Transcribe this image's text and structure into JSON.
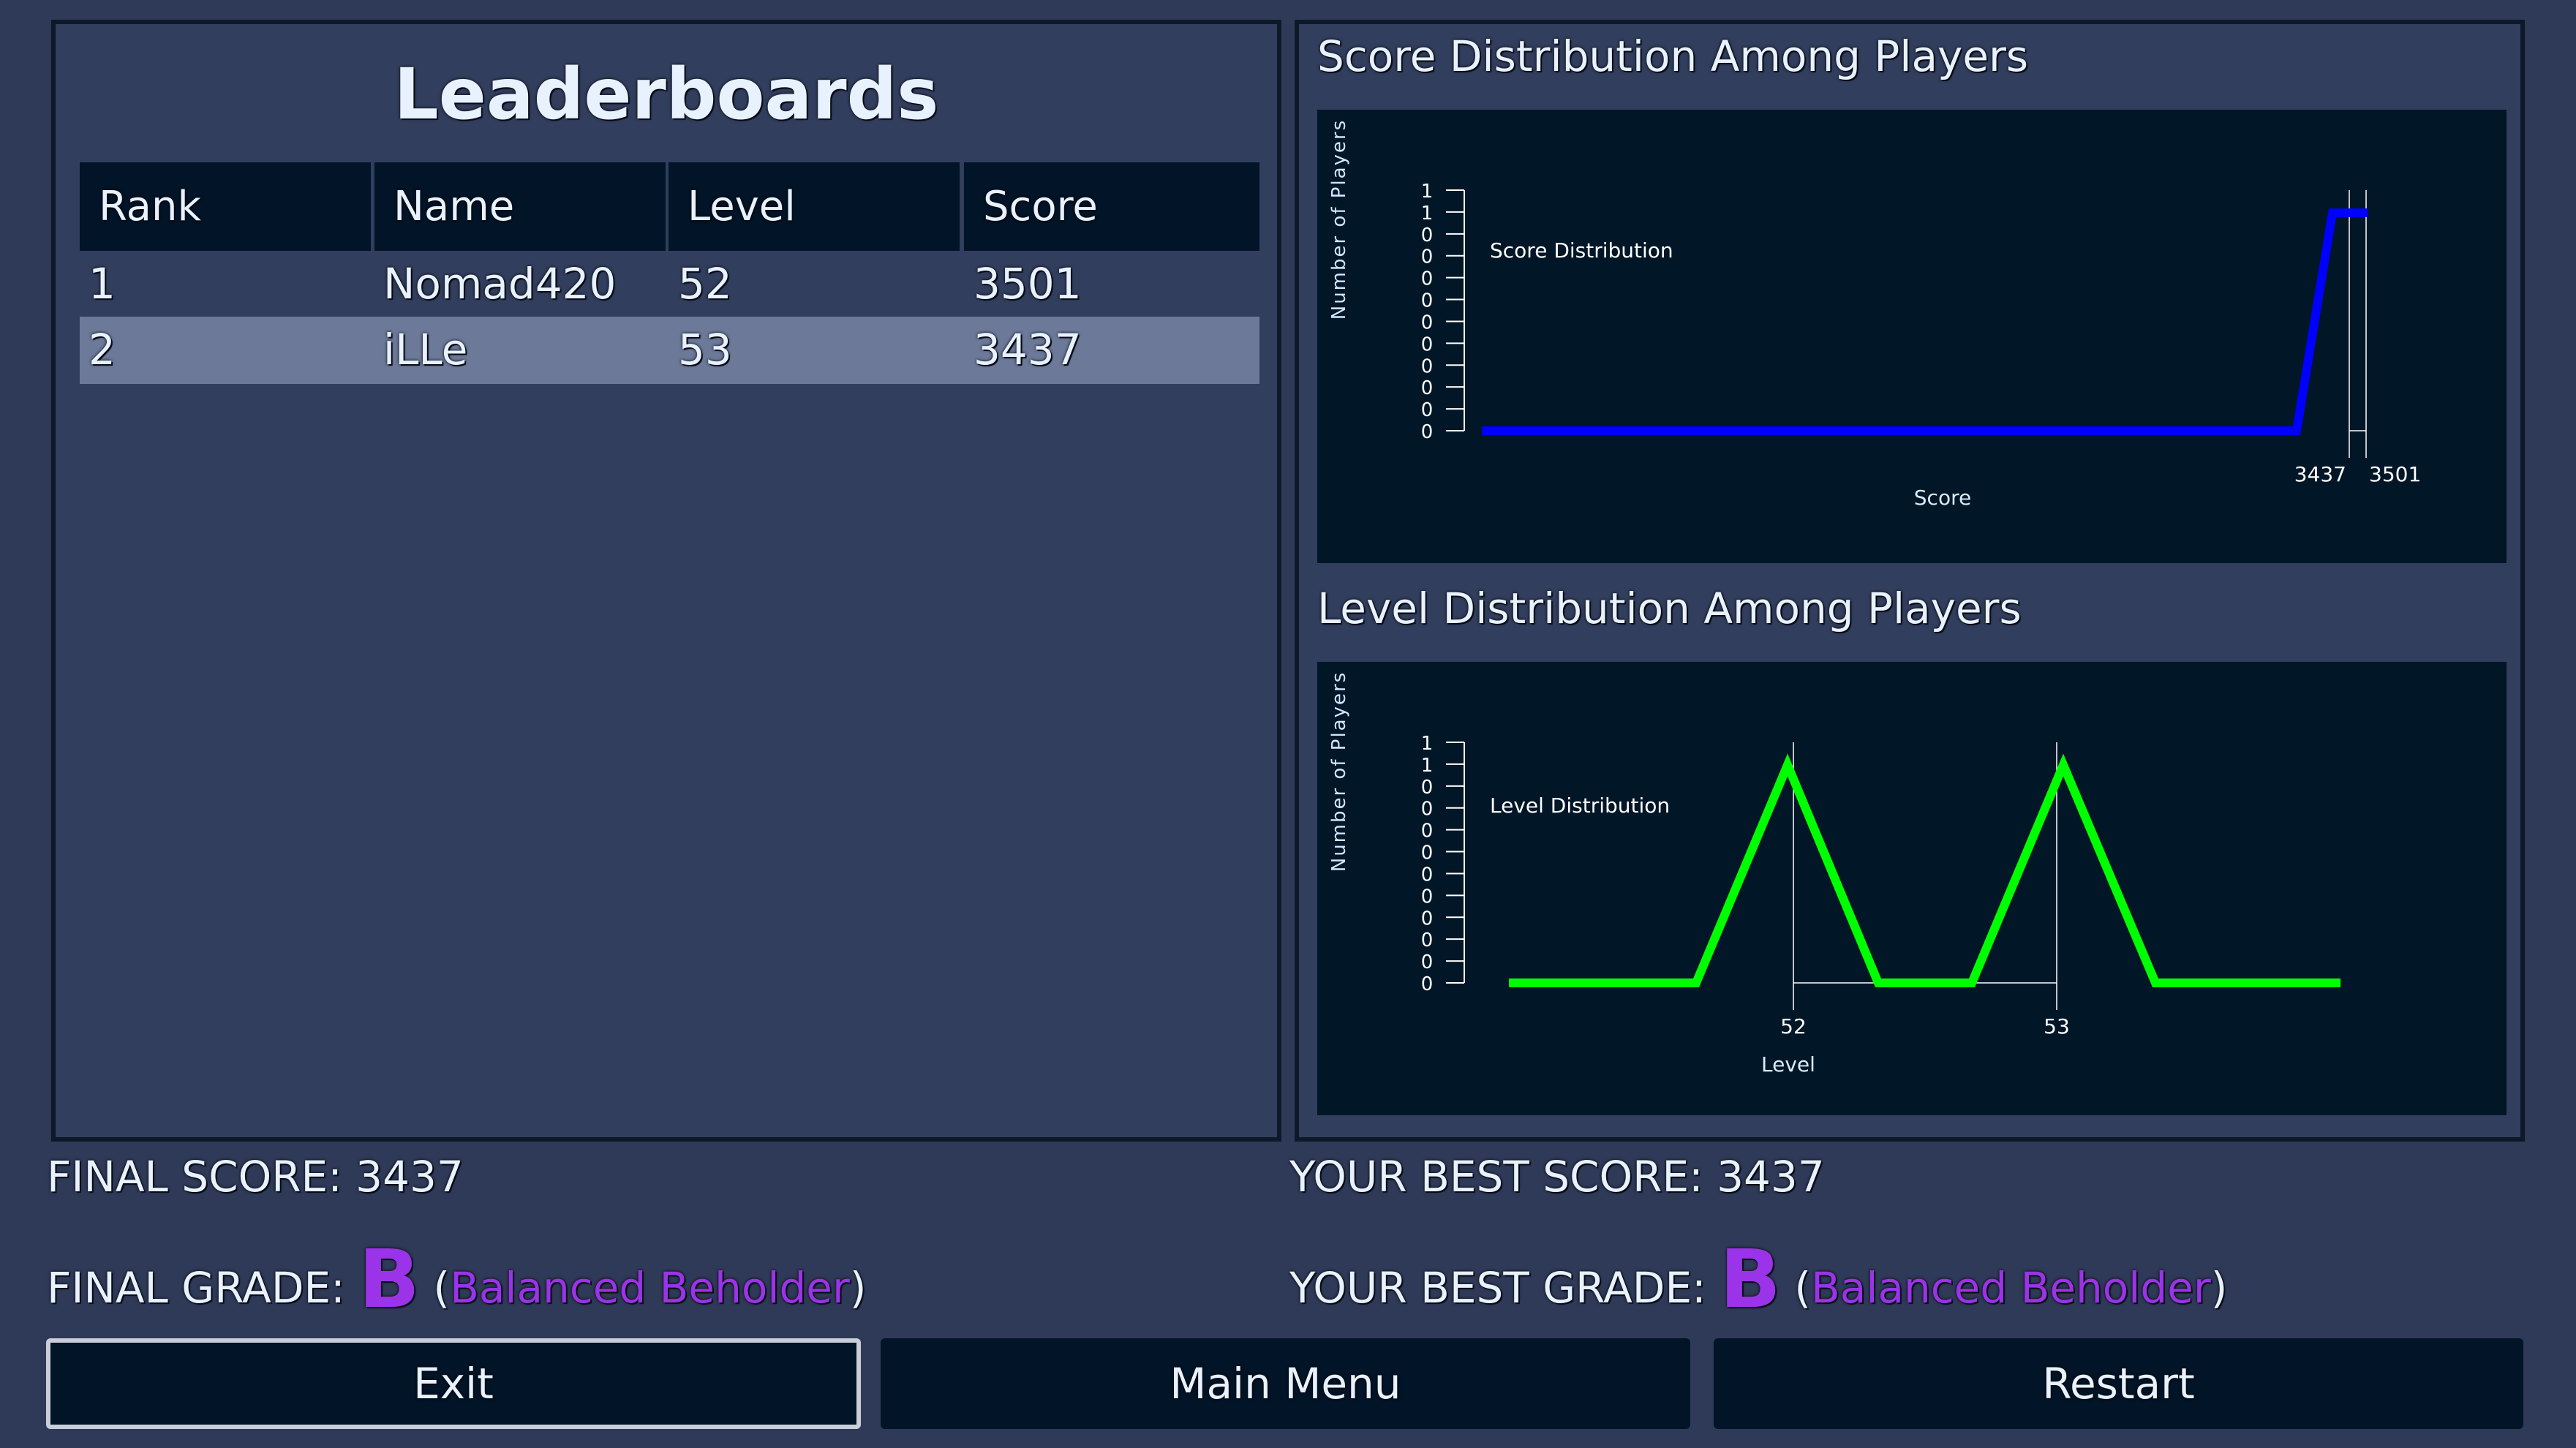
{
  "leaderboard": {
    "title": "Leaderboards",
    "columns": [
      "Rank",
      "Name",
      "Level",
      "Score"
    ],
    "rows": [
      {
        "rank": "1",
        "name": "Nomad420",
        "level": "52",
        "score": "3501",
        "highlighted": false
      },
      {
        "rank": "2",
        "name": "iLLe",
        "level": "53",
        "score": "3437",
        "highlighted": true
      }
    ]
  },
  "score_chart": {
    "title": "Score Distribution Among Players"
  },
  "level_chart": {
    "title": "Level Distribution Among Players"
  },
  "chart_data": [
    {
      "type": "line",
      "legend": "Score Distribution",
      "xlabel": "Score",
      "ylabel": "Number of Players",
      "x_tick_labels": [
        "3437",
        "3501"
      ],
      "y_tick_labels": [
        "1",
        "1",
        "0",
        "0",
        "0",
        "0",
        "0",
        "0",
        "0",
        "0",
        "0",
        "0"
      ],
      "series": [
        {
          "name": "Score Distribution",
          "color": "#0000ff",
          "values": [
            0,
            0,
            1,
            1
          ]
        }
      ]
    },
    {
      "type": "line",
      "legend": "Level Distribution",
      "xlabel": "Level",
      "ylabel": "Number of Players",
      "x_tick_labels": [
        "52",
        "53"
      ],
      "y_tick_labels": [
        "1",
        "1",
        "0",
        "0",
        "0",
        "0",
        "0",
        "0",
        "0",
        "0",
        "0",
        "0"
      ],
      "series": [
        {
          "name": "Level Distribution",
          "color": "#00ff00",
          "values": [
            0,
            0,
            1,
            0,
            0,
            1,
            0,
            0
          ]
        }
      ]
    }
  ],
  "results": {
    "final_score_label": "FINAL SCORE:",
    "final_score": "3437",
    "final_grade_label": "FINAL GRADE:",
    "final_grade": "B",
    "final_grade_name": "Balanced Beholder",
    "best_score_label": "YOUR BEST SCORE:",
    "best_score": "3437",
    "best_grade_label": "YOUR BEST GRADE:",
    "best_grade": "B",
    "best_grade_name": "Balanced Beholder",
    "grade_color": "#9b33e8"
  },
  "buttons": {
    "exit": "Exit",
    "main_menu": "Main Menu",
    "restart": "Restart"
  }
}
